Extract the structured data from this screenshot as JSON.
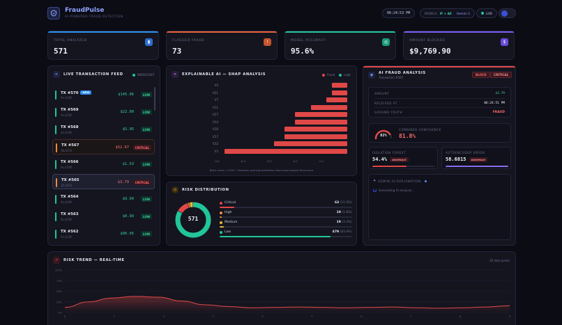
{
  "header": {
    "brand": "FraudPulse",
    "tagline": "AI-POWERED FRAUD DETECTION",
    "clock": "06:24:53 PM",
    "models_label": "MODELS",
    "models_value": "IF + AE",
    "models_extra": "Gemini 3",
    "live_label": "LIVE"
  },
  "stats": [
    {
      "label": "TOTAL ANALYZED",
      "value": "571",
      "color": "#2f8ff0",
      "icon": "chart-icon"
    },
    {
      "label": "FLAGGED FRAUD",
      "value": "73",
      "color": "#e8603c",
      "icon": "alert-icon"
    },
    {
      "label": "MODEL ACCURACY",
      "value": "95.6%",
      "color": "#22c59a",
      "icon": "target-icon"
    },
    {
      "label": "AMOUNT BLOCKED",
      "value": "$9,769.90",
      "color": "#7a5cf0",
      "icon": "dollar-icon"
    }
  ],
  "feed": {
    "title": "LIVE TRANSACTION FEED",
    "status": "WEBSOCKET",
    "new_label": "NEW",
    "items": [
      {
        "id": "TX #570",
        "status": "ALLOW",
        "amount": "$145.06",
        "badge": "LOW",
        "new": true
      },
      {
        "id": "TX #569",
        "status": "ALLOW",
        "amount": "$22.00",
        "badge": "LOW"
      },
      {
        "id": "TX #568",
        "status": "ALLOW",
        "amount": "$5.95",
        "badge": "LOW"
      },
      {
        "id": "TX #567",
        "status": "BLOCK",
        "amount": "$52.67",
        "badge": "CRITICAL"
      },
      {
        "id": "TX #566",
        "status": "ALLOW",
        "amount": "$1.53",
        "badge": "LOW"
      },
      {
        "id": "TX #565",
        "status": "BLOCK",
        "amount": "$3.79",
        "badge": "CRITICAL"
      },
      {
        "id": "TX #564",
        "status": "ALLOW",
        "amount": "$9.99",
        "badge": "LOW"
      },
      {
        "id": "TX #563",
        "status": "ALLOW",
        "amount": "$0.99",
        "badge": "LOW"
      },
      {
        "id": "TX #562",
        "status": "ALLOW",
        "amount": "$96.95",
        "badge": "LOW"
      }
    ]
  },
  "shap": {
    "title": "EXPLAINABLE AI — SHAP ANALYSIS",
    "legend": [
      "Fraud",
      "Legit"
    ],
    "footer": "Base value: -0.005 • Features pushing prediction from base toward final score",
    "chart_data": {
      "type": "bar",
      "orientation": "horizontal",
      "categories": [
        "V4",
        "V21",
        "V7",
        "V11",
        "V27",
        "V14",
        "V16",
        "V17",
        "V12",
        "V3"
      ],
      "values": [
        -0.06,
        -0.06,
        -0.08,
        -0.14,
        -0.2,
        -0.2,
        -0.24,
        -0.24,
        -0.28,
        -0.47
      ],
      "ticks": [
        "-0.5",
        "-0.4",
        "-0.3",
        "-0.2",
        "-0.1"
      ],
      "xlim": [
        -0.5,
        0
      ]
    }
  },
  "risk": {
    "title": "RISK DISTRIBUTION",
    "total": "571",
    "items": [
      {
        "name": "Critical",
        "count": "63",
        "pct": "(11.0%)",
        "color": "#e04848",
        "fraction": 0.11
      },
      {
        "name": "High",
        "count": "10",
        "pct": "(1.8%)",
        "color": "#f08a3c",
        "fraction": 0.018
      },
      {
        "name": "Medium",
        "count": "19",
        "pct": "(3.3%)",
        "color": "#e8b830",
        "fraction": 0.033
      },
      {
        "name": "Low",
        "count": "479",
        "pct": "(83.9%)",
        "color": "#22c59a",
        "fraction": 0.839
      }
    ]
  },
  "ai": {
    "title": "AI FRAUD ANALYSIS",
    "subtitle": "Transaction #565",
    "block_label": "BLOCK",
    "severity": "CRITICAL",
    "rows": [
      {
        "label": "AMOUNT",
        "value": "$3.79"
      },
      {
        "label": "RECEIVED AT",
        "value": "06:24:51 PM"
      },
      {
        "label": "GROUND TRUTH",
        "value": "FRAUD"
      }
    ],
    "gauge_value": "82%",
    "gauge_fraction": 0.82,
    "combined_label": "COMBINED CONFIDENCE",
    "combined_value": "81.8%",
    "iso_label": "ISOLATION FOREST",
    "iso_value": "54.4%",
    "iso_tag": "ANOMALY",
    "iso_fraction": 0.544,
    "ae_label": "AUTOENCODER ERROR",
    "ae_value": "58.6815",
    "ae_tag": "ANOMALY",
    "ae_fraction": 1.0,
    "gemini_label": "GEMINI AI EXPLANATION",
    "gemini_text": "Generating AI analysis..."
  },
  "trend": {
    "title": "RISK TREND — REAL-TIME",
    "meta": "20 data points",
    "chart_data": {
      "type": "line",
      "y_ticks": [
        "100%",
        "75%",
        "50%",
        "25%",
        "0%"
      ],
      "x_ticks": [
        "0",
        "1",
        "2",
        "3",
        "4",
        "5",
        "6",
        "7",
        "8",
        "9"
      ],
      "ylim": [
        0,
        100
      ],
      "xlim": [
        0,
        9
      ],
      "values": [
        12,
        25,
        34,
        38,
        36,
        27,
        18,
        14,
        11,
        12,
        13,
        12,
        11,
        12,
        13,
        11,
        10,
        11,
        13,
        16
      ]
    }
  }
}
